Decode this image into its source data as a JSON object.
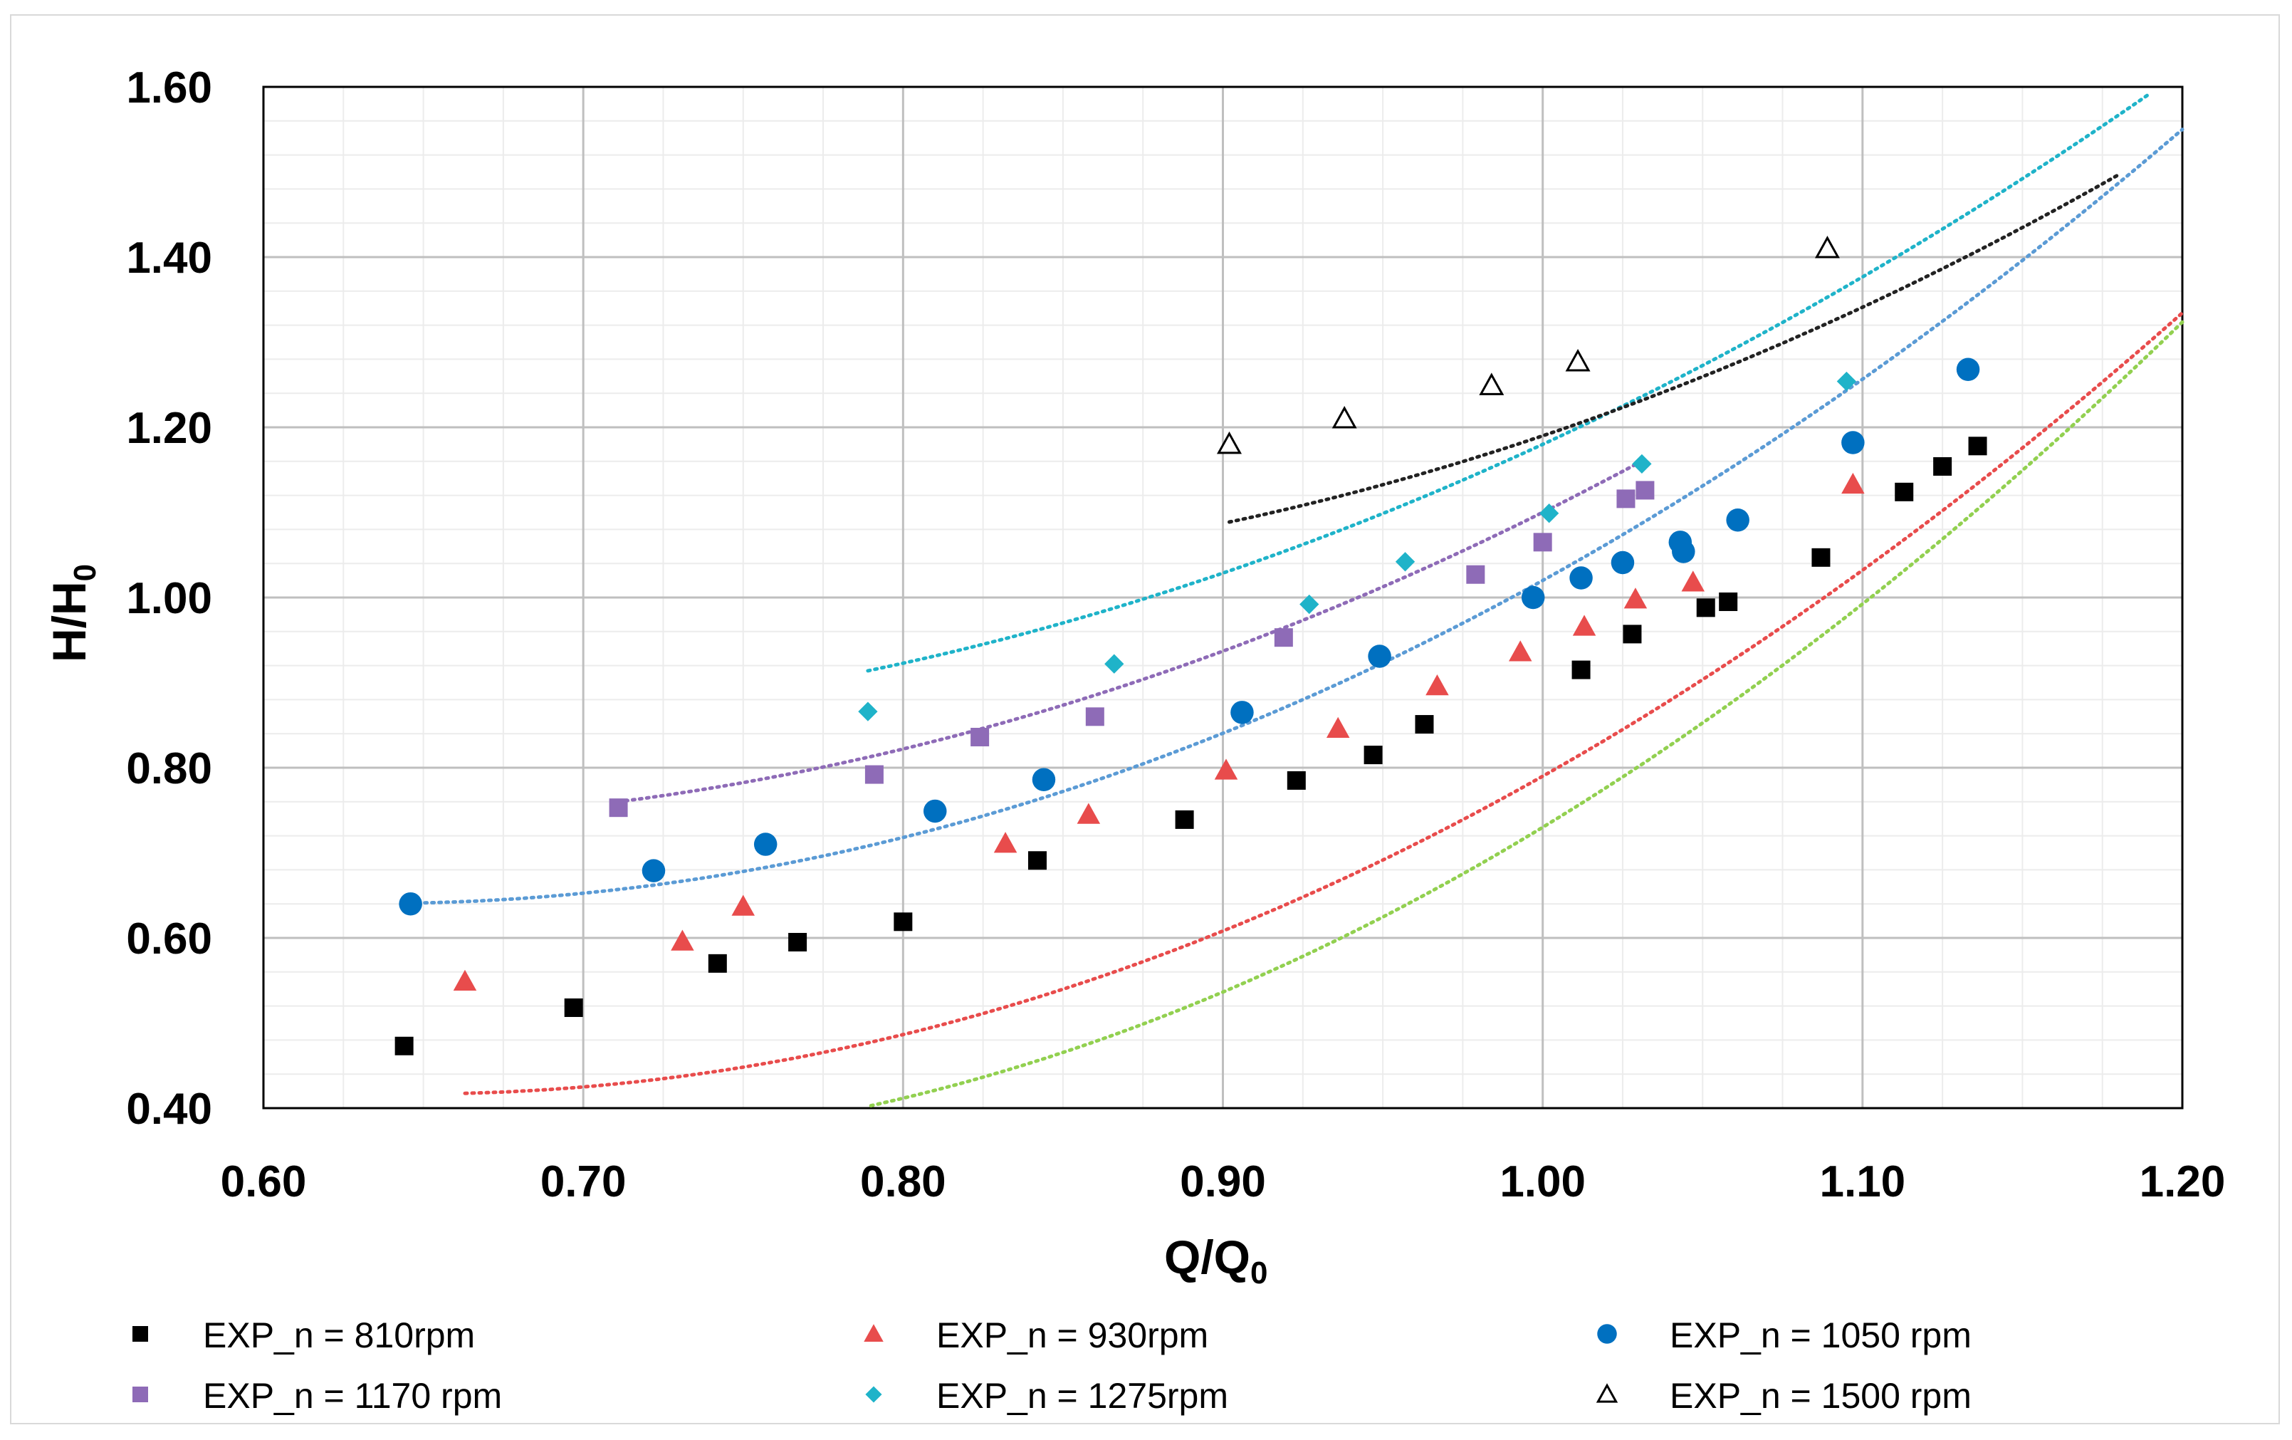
{
  "chart_data": {
    "type": "scatter",
    "xlabel": "Q/Q",
    "xlabel_sub": "0",
    "ylabel": "H/H",
    "ylabel_sub": "0",
    "xlim": [
      0.6,
      1.2
    ],
    "ylim": [
      0.4,
      1.6
    ],
    "xticks": [
      0.6,
      0.7,
      0.8,
      0.9,
      1.0,
      1.1,
      1.2
    ],
    "yticks": [
      0.4,
      0.6,
      0.8,
      1.0,
      1.2,
      1.4,
      1.6
    ],
    "grid": true,
    "legend_position": "bottom",
    "series": [
      {
        "name": "EXP_n = 810rpm",
        "marker": "square",
        "color": "#000000",
        "trend_color": "#92d050",
        "x": [
          0.644,
          0.697,
          0.742,
          0.767,
          0.8,
          0.842,
          0.888,
          0.923,
          0.947,
          0.963,
          1.012,
          1.028,
          1.051,
          1.058,
          1.087,
          1.113,
          1.125,
          1.136
        ],
        "y": [
          0.473,
          0.518,
          0.57,
          0.595,
          0.619,
          0.691,
          0.739,
          0.785,
          0.815,
          0.851,
          0.915,
          0.957,
          0.988,
          0.995,
          1.047,
          1.124,
          1.154,
          1.178
        ],
        "trend": {
          "x_start": 0.644,
          "x_end": 1.2,
          "coef": [
            3.44,
            -4.6,
            1.89
          ]
        }
      },
      {
        "name": "EXP_n = 930rpm",
        "marker": "triangle",
        "color": "#e84c4c",
        "trend_color": "#e84c4c",
        "x": [
          0.663,
          0.731,
          0.75,
          0.832,
          0.858,
          0.901,
          0.936,
          0.967,
          0.993,
          1.013,
          1.029,
          1.047,
          1.097
        ],
        "y": [
          0.549,
          0.596,
          0.637,
          0.711,
          0.745,
          0.797,
          0.846,
          0.896,
          0.936,
          0.966,
          0.998,
          1.018,
          1.133
        ],
        "trend": {
          "x_start": 0.663,
          "x_end": 1.2,
          "coef": [
            3.01,
            -3.9,
            1.68
          ]
        }
      },
      {
        "name": "EXP_n = 1050 rpm",
        "marker": "circle",
        "color": "#0070c0",
        "trend_color": "#5b9bd5",
        "x": [
          0.646,
          0.722,
          0.757,
          0.81,
          0.844,
          0.906,
          0.949,
          0.997,
          1.012,
          1.025,
          1.043,
          1.044,
          1.061,
          1.097,
          1.133
        ],
        "y": [
          0.64,
          0.679,
          0.71,
          0.749,
          0.786,
          0.865,
          0.931,
          1.0,
          1.023,
          1.041,
          1.065,
          1.054,
          1.091,
          1.182,
          1.268
        ],
        "trend": {
          "x_start": 0.646,
          "x_end": 1.2,
          "coef": [
            2.85,
            -3.62,
            1.79
          ]
        }
      },
      {
        "name": "EXP_n = 1170 rpm",
        "marker": "square",
        "color": "#8e6bb7",
        "trend_color": "#8e6bb7",
        "x": [
          0.711,
          0.791,
          0.824,
          0.86,
          0.919,
          0.979,
          1.0,
          1.026,
          1.032
        ],
        "y": [
          0.753,
          0.792,
          0.836,
          0.86,
          0.953,
          1.027,
          1.065,
          1.116,
          1.126
        ],
        "trend": {
          "x_start": 0.711,
          "x_end": 1.032,
          "coef": [
            2.4,
            -2.93,
            1.63
          ]
        }
      },
      {
        "name": "EXP_n = 1275rpm",
        "marker": "diamond",
        "color": "#1fb3c9",
        "trend_color": "#1fb3c9",
        "x": [
          0.789,
          0.866,
          0.927,
          0.957,
          1.002,
          1.031,
          1.095
        ],
        "y": [
          0.866,
          0.922,
          0.992,
          1.042,
          1.099,
          1.157,
          1.254
        ],
        "trend": {
          "x_start": 0.789,
          "x_end": 1.2,
          "coef": [
            2.27,
            -2.8,
            1.71
          ]
        }
      },
      {
        "name": "EXP_n = 1500 rpm",
        "marker": "open-triangle",
        "color": "#000000",
        "trend_color": "#222222",
        "x": [
          0.902,
          0.938,
          0.984,
          1.011,
          1.089
        ],
        "y": [
          1.18,
          1.21,
          1.249,
          1.277,
          1.41
        ],
        "trend": {
          "x_start": 0.902,
          "x_end": 1.18,
          "coef": [
            2.41,
            -3.55,
            2.33
          ]
        }
      }
    ]
  }
}
